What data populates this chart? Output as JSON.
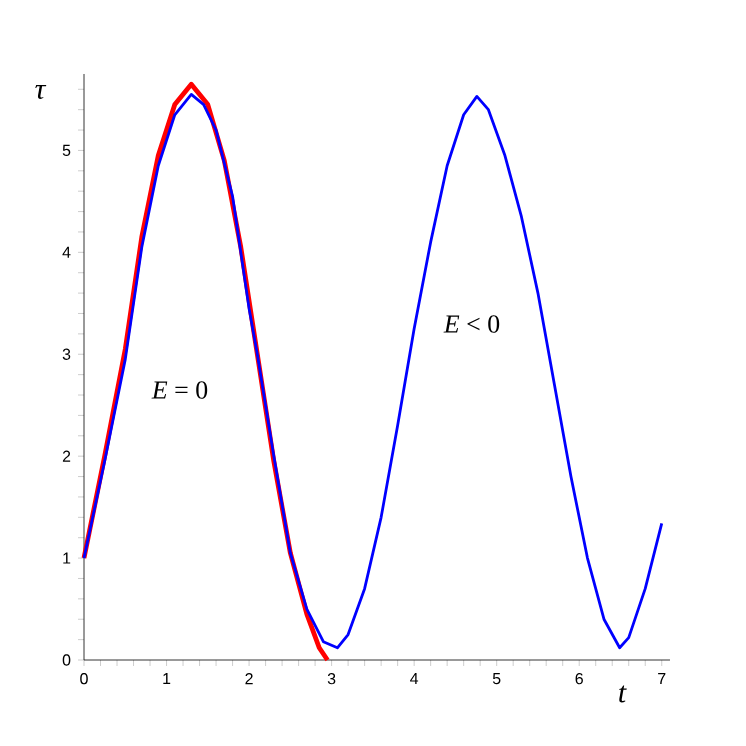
{
  "chart_data": {
    "type": "line",
    "xlabel": "t",
    "ylabel": "τ",
    "xlim": [
      0,
      7.1
    ],
    "ylim": [
      0,
      5.75
    ],
    "xticks": [
      0,
      {
        "value": 0.2,
        "label": null
      },
      {
        "value": 0.4,
        "label": null
      },
      {
        "value": 0.6,
        "label": null
      },
      {
        "value": 0.8,
        "label": null
      },
      1,
      {
        "value": 1.2,
        "label": null
      },
      {
        "value": 1.4,
        "label": null
      },
      {
        "value": 1.6,
        "label": null
      },
      {
        "value": 1.8,
        "label": null
      },
      2,
      {
        "value": 2.2,
        "label": null
      },
      {
        "value": 2.4,
        "label": null
      },
      {
        "value": 2.6,
        "label": null
      },
      {
        "value": 2.8,
        "label": null
      },
      3,
      {
        "value": 3.2,
        "label": null
      },
      {
        "value": 3.4,
        "label": null
      },
      {
        "value": 3.6,
        "label": null
      },
      {
        "value": 3.8,
        "label": null
      },
      4,
      {
        "value": 4.2,
        "label": null
      },
      {
        "value": 4.4,
        "label": null
      },
      {
        "value": 4.6,
        "label": null
      },
      {
        "value": 4.8,
        "label": null
      },
      5,
      {
        "value": 5.2,
        "label": null
      },
      {
        "value": 5.4,
        "label": null
      },
      {
        "value": 5.6,
        "label": null
      },
      {
        "value": 5.8,
        "label": null
      },
      6,
      {
        "value": 6.2,
        "label": null
      },
      {
        "value": 6.4,
        "label": null
      },
      {
        "value": 6.6,
        "label": null
      },
      {
        "value": 6.8,
        "label": null
      },
      7
    ],
    "yticks": [
      0,
      {
        "value": 0.2,
        "label": null
      },
      {
        "value": 0.4,
        "label": null
      },
      {
        "value": 0.6,
        "label": null
      },
      {
        "value": 0.8,
        "label": null
      },
      1,
      {
        "value": 1.2,
        "label": null
      },
      {
        "value": 1.4,
        "label": null
      },
      {
        "value": 1.6,
        "label": null
      },
      {
        "value": 1.8,
        "label": null
      },
      2,
      {
        "value": 2.2,
        "label": null
      },
      {
        "value": 2.4,
        "label": null
      },
      {
        "value": 2.6,
        "label": null
      },
      {
        "value": 2.8,
        "label": null
      },
      3,
      {
        "value": 3.2,
        "label": null
      },
      {
        "value": 3.4,
        "label": null
      },
      {
        "value": 3.6,
        "label": null
      },
      {
        "value": 3.8,
        "label": null
      },
      4,
      {
        "value": 4.2,
        "label": null
      },
      {
        "value": 4.4,
        "label": null
      },
      {
        "value": 4.6,
        "label": null
      },
      {
        "value": 4.8,
        "label": null
      },
      5,
      {
        "value": 5.2,
        "label": null
      },
      {
        "value": 5.4,
        "label": null
      },
      {
        "value": 5.6,
        "label": null
      }
    ],
    "series": [
      {
        "color": "#ff0000",
        "x": [
          0,
          0.25,
          0.5,
          0.7,
          0.9,
          1.1,
          1.3,
          1.5,
          1.7,
          1.9,
          2.1,
          2.3,
          2.5,
          2.7,
          2.85,
          2.95
        ],
        "values": [
          1,
          2.0,
          3.05,
          4.15,
          4.95,
          5.45,
          5.65,
          5.45,
          4.9,
          4.05,
          3.0,
          1.95,
          1.05,
          0.45,
          0.12,
          0
        ]
      },
      {
        "color": "#0000ff",
        "x": [
          0,
          0.25,
          0.5,
          0.7,
          0.9,
          1.1,
          1.3,
          1.45,
          1.6,
          1.8,
          2.0,
          2.1,
          2.3,
          2.5,
          2.7,
          2.9,
          3.07,
          3.2,
          3.4,
          3.6,
          3.8,
          4.0,
          4.2,
          4.4,
          4.6,
          4.76,
          4.9,
          5.1,
          5.3,
          5.5,
          5.7,
          5.9,
          6.1,
          6.3,
          6.49,
          6.6,
          6.8,
          7.0
        ],
        "values": [
          1,
          1.95,
          2.95,
          4.05,
          4.85,
          5.35,
          5.55,
          5.45,
          5.2,
          4.55,
          3.45,
          3.0,
          2.0,
          1.05,
          0.5,
          0.18,
          0.12,
          0.25,
          0.7,
          1.4,
          2.3,
          3.25,
          4.1,
          4.85,
          5.35,
          5.53,
          5.4,
          4.95,
          4.35,
          3.6,
          2.7,
          1.8,
          1.0,
          0.4,
          0.12,
          0.22,
          0.7,
          1.34
        ]
      }
    ],
    "annotations": [
      "*E* = 0",
      "*E* < 0"
    ],
    "grid": false,
    "marker": "none",
    "line_style": "solid"
  }
}
